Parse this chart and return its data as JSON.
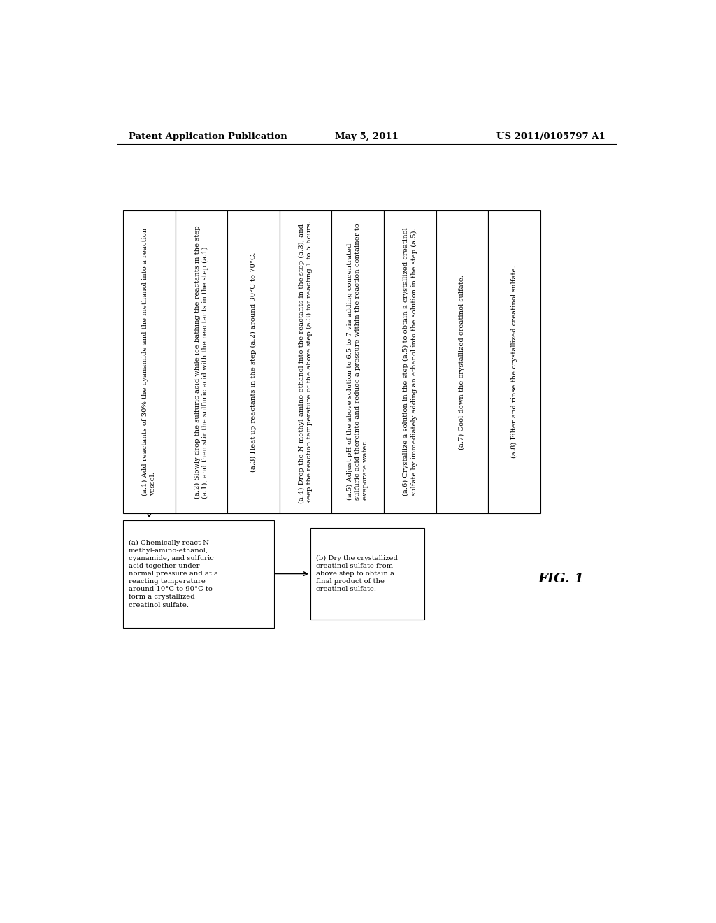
{
  "header_left": "Patent Application Publication",
  "header_center": "May 5, 2011",
  "header_right": "US 2011/0105797 A1",
  "fig_label": "FIG. 1",
  "step_boxes": [
    "(a.1) Add reactants of 30% the cyanamide and the methanol into a reaction\nvessel.",
    "(a.2) Slowly drop the sulfuric acid while ice bathing the reactants in the step\n(a.1), and then stir the sulfuric acid with the reactants in the step (a.1)",
    "(a.3) Heat up reactants in the step (a.2) around 30°C to 70°C.",
    "(a.4) Drop the N-methyl-amino-ethanol into the reactants in the step (a.3), and\nkeep the reaction temperature of the above step (a.3) for reacting 1 to 5 hours.",
    "(a.5) Adjust pH of the above solution to 6.5 to 7 via adding concentrated\nsulfuric acid thereinto and reduce a pressure within the reaction container to\nevaporate water.",
    "(a.6) Crystallize a solution in the step (a.5) to obtain a crystallized creatinol\nsulfate by immediately adding an ethanol into the solution in the step (a.5).",
    "(a.7) Cool down the crystallized creatinol sulfate.",
    "(a.8) Filter and rinse the crystallized creatinol sulfate."
  ],
  "box_a_text": "(a) Chemically react N-\nmethyl-amino-ethanol,\ncyanamide, and sulfuric\nacid together under\nnormal pressure and at a\nreacting temperature\naround 10°C to 90°C to\nform a crystallized\ncreatinol sulfate.",
  "box_b_text": "(b) Dry the crystallized\ncreatinol sulfate from\nabove step to obtain a\nfinal product of the\ncreatinol sulfate.",
  "background_color": "#ffffff",
  "box_edge_color": "#000000",
  "text_color": "#000000",
  "font_size": 7.2,
  "header_font_size": 9.5,
  "fig_font_size": 14
}
